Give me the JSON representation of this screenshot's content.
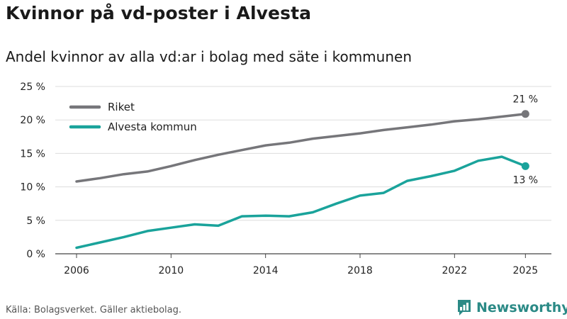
{
  "title": "Kvinnor på vd-poster i Alvesta",
  "subtitle": "Andel kvinnor av alla vd:ar i bolag med säte i kommunen",
  "source": "Källa: Bolagsverket. Gäller aktiebolag.",
  "brand": "Newsworthy",
  "colors": {
    "riket": "#76767a",
    "alvesta": "#1aa39b",
    "grid": "#dddddd",
    "brand": "#2b8a86"
  },
  "chart_data": {
    "type": "line",
    "title": "Kvinnor på vd-poster i Alvesta",
    "xlabel": "",
    "ylabel": "",
    "x": [
      2006,
      2007,
      2008,
      2009,
      2010,
      2011,
      2012,
      2013,
      2014,
      2015,
      2016,
      2017,
      2018,
      2019,
      2020,
      2021,
      2022,
      2023,
      2024,
      2025
    ],
    "xticks": [
      2006,
      2010,
      2014,
      2018,
      2022,
      2025
    ],
    "xlim": [
      2005.1,
      2026.1
    ],
    "ylim": [
      0,
      25
    ],
    "yticks": [
      0,
      5,
      10,
      15,
      20,
      25
    ],
    "ytick_labels": [
      "0 %",
      "5 %",
      "10 %",
      "15 %",
      "20 %",
      "25 %"
    ],
    "series": [
      {
        "name": "Riket",
        "color": "#76767a",
        "values": [
          10.8,
          11.3,
          11.9,
          12.3,
          13.1,
          14.0,
          14.8,
          15.5,
          16.2,
          16.6,
          17.2,
          17.6,
          18.0,
          18.5,
          18.9,
          19.3,
          19.8,
          20.1,
          20.5,
          20.9
        ],
        "end_label": "21 %"
      },
      {
        "name": "Alvesta kommun",
        "color": "#1aa39b",
        "values": [
          0.9,
          1.7,
          2.5,
          3.4,
          3.9,
          4.4,
          4.2,
          5.6,
          5.7,
          5.6,
          6.2,
          7.5,
          8.7,
          9.1,
          10.9,
          11.6,
          12.4,
          13.9,
          14.5,
          13.1
        ],
        "end_label": "13 %"
      }
    ],
    "legend_position": "top-left",
    "grid": true
  }
}
